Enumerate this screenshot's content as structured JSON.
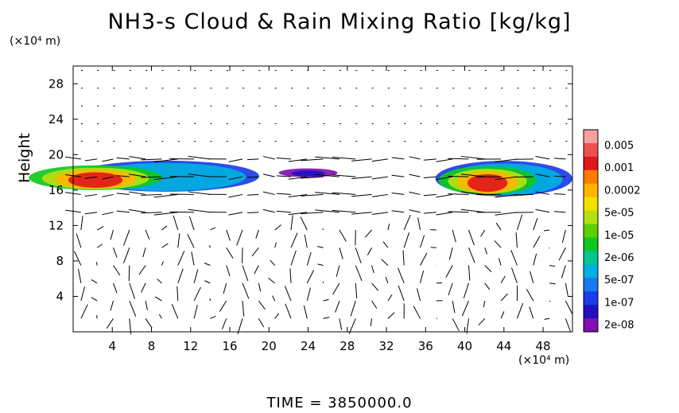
{
  "title": "NH3-s Cloud & Rain Mixing Ratio [kg/kg]",
  "y_unit_label": "(×10⁴ m)",
  "x_unit_label": "(×10⁴ m)",
  "time_label": "TIME  =  3850000.0",
  "chart_data": {
    "type": "heatmap",
    "title": "NH3-s Cloud & Rain Mixing Ratio [kg/kg]",
    "xlabel": "",
    "ylabel": "Height",
    "x_unit": "(×10⁴ m)",
    "y_unit": "(×10⁴ m)",
    "xlim": [
      0,
      51
    ],
    "ylim": [
      0,
      30
    ],
    "x_ticks": [
      4,
      8,
      12,
      16,
      20,
      24,
      28,
      32,
      36,
      40,
      44,
      48
    ],
    "y_ticks": [
      4,
      8,
      12,
      16,
      20,
      24,
      28
    ],
    "colorbar": {
      "labels": [
        "0.005",
        "0.001",
        "0.0002",
        "5e-05",
        "1e-05",
        "2e-06",
        "5e-07",
        "1e-07",
        "2e-08"
      ],
      "colors": [
        "#f6a0a0",
        "#ee5050",
        "#e01818",
        "#ff7a00",
        "#ffb400",
        "#f0e000",
        "#b8e010",
        "#5cd000",
        "#10c820",
        "#00c890",
        "#00b0e0",
        "#1878f0",
        "#1c3ce8",
        "#2010c0",
        "#8010b0"
      ]
    },
    "cloud_regions": [
      {
        "x_range": [
          0,
          19
        ],
        "y_range": [
          16,
          19.5
        ],
        "max_level": "0.001"
      },
      {
        "x_range": [
          21,
          27
        ],
        "y_range": [
          17.5,
          18.5
        ],
        "max_level": "2e-08"
      },
      {
        "x_range": [
          37,
          51
        ],
        "y_range": [
          15.5,
          19.5
        ],
        "max_level": "0.001"
      }
    ],
    "vectors": "wind field arrows on regular grid, stronger horizontal flow near z=14-20, vertical cells below"
  }
}
